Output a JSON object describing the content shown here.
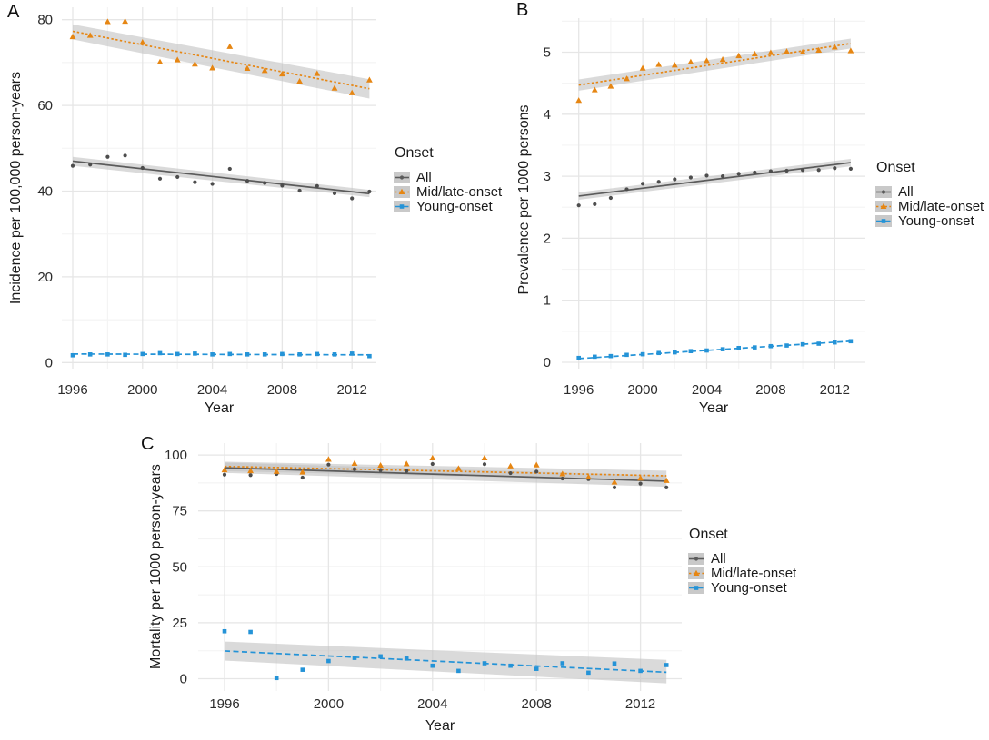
{
  "colors": {
    "all": "#4d4d4d",
    "all_line": "#5b5b5b",
    "mid_late": "#e68613",
    "young": "#2493d7",
    "band": "#c2c2c2",
    "grid_major": "#e6e6e6",
    "grid_minor": "#f4f4f4",
    "tick_text": "#2b2b2b"
  },
  "chart_data": [
    {
      "type": "scatter",
      "panel_label": "A",
      "xlabel": "Year",
      "ylabel": "Incidence per 100,000 person-years",
      "legend": {
        "title": "Onset"
      },
      "x_ticks": [
        1996,
        2000,
        2004,
        2008,
        2012
      ],
      "y_ticks": [
        0,
        20,
        40,
        60,
        80
      ],
      "xlim": [
        1995.4,
        2013.7
      ],
      "ylim": [
        0,
        83
      ],
      "grid": true,
      "legend_position": "right",
      "x": [
        1996,
        1997,
        1998,
        1999,
        2000,
        2001,
        2002,
        2003,
        2004,
        2005,
        2006,
        2007,
        2008,
        2009,
        2010,
        2011,
        2012,
        2013
      ],
      "series": [
        {
          "name": "All",
          "marker": "circle",
          "line": "solid",
          "color_key": "all",
          "values": [
            45.9,
            46.2,
            48.0,
            48.3,
            45.4,
            42.9,
            43.3,
            42.1,
            41.7,
            45.2,
            42.4,
            41.9,
            41.3,
            40.1,
            41.2,
            39.5,
            38.3,
            39.9
          ],
          "trend": {
            "start": 47.0,
            "end": 39.4
          },
          "band": {
            "upper_start": 48.0,
            "upper_end": 40.3,
            "lower_start": 45.9,
            "lower_end": 38.6
          }
        },
        {
          "name": "Mid/late-onset",
          "marker": "triangle",
          "line": "dotted",
          "color_key": "mid_late",
          "values": [
            76.0,
            76.3,
            79.5,
            79.6,
            74.7,
            70.1,
            70.6,
            69.6,
            68.7,
            73.7,
            68.6,
            68.1,
            67.3,
            65.6,
            67.4,
            64.0,
            62.9,
            65.9
          ],
          "trend": {
            "start": 77.3,
            "end": 63.9
          },
          "band": {
            "upper_start": 78.9,
            "upper_end": 66.1,
            "lower_start": 75.4,
            "lower_end": 61.6
          }
        },
        {
          "name": "Young-onset",
          "marker": "square",
          "line": "dashed",
          "color_key": "young",
          "values": [
            1.7,
            1.9,
            1.9,
            1.8,
            2.0,
            2.2,
            2.0,
            2.1,
            1.9,
            2.0,
            1.9,
            1.9,
            2.0,
            1.9,
            2.0,
            1.9,
            2.1,
            1.5
          ],
          "trend": {
            "start": 2.0,
            "end": 1.8
          },
          "band": null
        }
      ]
    },
    {
      "type": "scatter",
      "panel_label": "B",
      "xlabel": "Year",
      "ylabel": "Prevalence per 1000 persons",
      "legend": {
        "title": "Onset"
      },
      "x_ticks": [
        1996,
        2000,
        2004,
        2008,
        2012
      ],
      "y_ticks": [
        0,
        1,
        2,
        3,
        4,
        5
      ],
      "xlim": [
        1995.4,
        2013.7
      ],
      "ylim": [
        0,
        5.5
      ],
      "grid": true,
      "legend_position": "right",
      "x": [
        1996,
        1997,
        1998,
        1999,
        2000,
        2001,
        2002,
        2003,
        2004,
        2005,
        2006,
        2007,
        2008,
        2009,
        2010,
        2011,
        2012,
        2013
      ],
      "series": [
        {
          "name": "All",
          "marker": "circle",
          "line": "solid",
          "color_key": "all",
          "values": [
            2.53,
            2.55,
            2.65,
            2.79,
            2.88,
            2.91,
            2.95,
            2.98,
            3.01,
            3.0,
            3.04,
            3.06,
            3.08,
            3.09,
            3.1,
            3.1,
            3.13,
            3.12
          ],
          "trend": {
            "start": 2.68,
            "end": 3.22
          },
          "band": {
            "upper_start": 2.74,
            "upper_end": 3.28,
            "lower_start": 2.62,
            "lower_end": 3.16
          }
        },
        {
          "name": "Mid/late-onset",
          "marker": "triangle",
          "line": "dotted",
          "color_key": "mid_late",
          "values": [
            4.22,
            4.39,
            4.45,
            4.57,
            4.74,
            4.8,
            4.79,
            4.84,
            4.86,
            4.88,
            4.94,
            4.97,
            4.99,
            5.01,
            5.0,
            5.03,
            5.08,
            5.02
          ],
          "trend": {
            "start": 4.47,
            "end": 5.14
          },
          "band": {
            "upper_start": 4.56,
            "upper_end": 5.22,
            "lower_start": 4.38,
            "lower_end": 5.06
          }
        },
        {
          "name": "Young-onset",
          "marker": "square",
          "line": "dashed",
          "color_key": "young",
          "values": [
            0.07,
            0.09,
            0.1,
            0.12,
            0.13,
            0.15,
            0.16,
            0.18,
            0.19,
            0.21,
            0.23,
            0.24,
            0.26,
            0.27,
            0.29,
            0.3,
            0.32,
            0.34
          ],
          "trend": {
            "start": 0.06,
            "end": 0.34
          },
          "band": null
        }
      ]
    },
    {
      "type": "scatter",
      "panel_label": "C",
      "xlabel": "Year",
      "ylabel": "Mortality per 1000 person-years",
      "legend": {
        "title": "Onset"
      },
      "x_ticks": [
        1996,
        2000,
        2004,
        2008,
        2012
      ],
      "y_ticks": [
        0,
        25,
        50,
        75,
        100
      ],
      "xlim": [
        1995.4,
        2013.7
      ],
      "ylim": [
        -5,
        105
      ],
      "grid": true,
      "legend_position": "right",
      "x": [
        1996,
        1997,
        1998,
        1999,
        2000,
        2001,
        2002,
        2003,
        2004,
        2005,
        2006,
        2007,
        2008,
        2009,
        2010,
        2011,
        2012,
        2013
      ],
      "series": [
        {
          "name": "All",
          "marker": "circle",
          "line": "solid",
          "color_key": "all",
          "values": [
            91.2,
            91.0,
            91.5,
            89.9,
            95.7,
            93.7,
            93.3,
            92.9,
            96.0,
            93.8,
            95.9,
            91.9,
            92.6,
            89.5,
            89.2,
            85.5,
            87.2,
            85.5
          ],
          "trend": {
            "start": 94.3,
            "end": 88.3
          },
          "band": {
            "upper_start": 96.6,
            "upper_end": 90.8,
            "lower_start": 92.0,
            "lower_end": 85.8
          }
        },
        {
          "name": "Mid/late-onset",
          "marker": "triangle",
          "line": "dotted",
          "color_key": "mid_late",
          "values": [
            93.3,
            92.9,
            92.6,
            92.3,
            98.0,
            96.2,
            95.3,
            96.0,
            98.6,
            93.9,
            98.6,
            95.0,
            95.5,
            91.5,
            90.1,
            87.8,
            89.6,
            88.5
          ],
          "trend": {
            "start": 94.9,
            "end": 90.7
          },
          "band": {
            "upper_start": 97.0,
            "upper_end": 93.0,
            "lower_start": 92.8,
            "lower_end": 88.4
          }
        },
        {
          "name": "Young-onset",
          "marker": "square",
          "line": "dashed",
          "color_key": "young",
          "values": [
            21.2,
            20.9,
            0.3,
            4.0,
            7.9,
            9.3,
            10.0,
            9.0,
            5.8,
            3.5,
            6.9,
            5.8,
            4.4,
            6.9,
            2.7,
            6.8,
            3.5,
            6.1
          ],
          "trend": {
            "start": 12.4,
            "end": 2.9
          },
          "band": {
            "upper_start": 16.6,
            "upper_end": 8.4,
            "lower_start": 8.1,
            "lower_end": -2.1
          }
        }
      ]
    }
  ]
}
